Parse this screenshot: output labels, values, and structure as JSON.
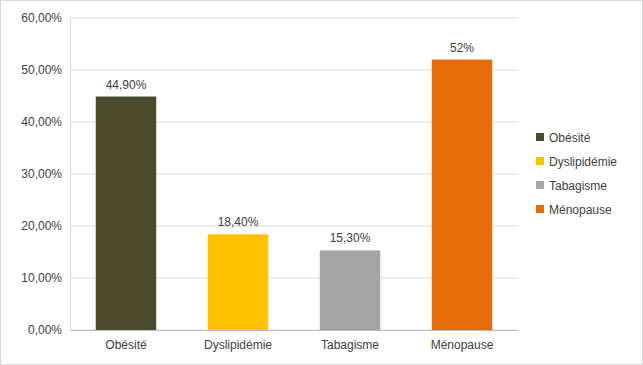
{
  "chart_data": {
    "type": "bar",
    "categories": [
      "Obésité",
      "Dyslipidémie",
      "Tabagisme",
      "Ménopause"
    ],
    "values": [
      44.9,
      18.4,
      15.3,
      52
    ],
    "value_labels": [
      "44,90%",
      "18,40%",
      "15,30%",
      "52%"
    ],
    "colors": [
      "#4b4a2c",
      "#ffc000",
      "#a5a5a5",
      "#e46c0a"
    ],
    "ylim": [
      0,
      60
    ],
    "yticks": [
      {
        "value": 0,
        "label": "0,00%"
      },
      {
        "value": 10,
        "label": "10,00%"
      },
      {
        "value": 20,
        "label": "20,00%"
      },
      {
        "value": 30,
        "label": "30,00%"
      },
      {
        "value": 40,
        "label": "40,00%"
      },
      {
        "value": 50,
        "label": "50,00%"
      },
      {
        "value": 60,
        "label": "60,00%"
      }
    ],
    "grid": true,
    "data_labels": true,
    "legend": "right"
  }
}
